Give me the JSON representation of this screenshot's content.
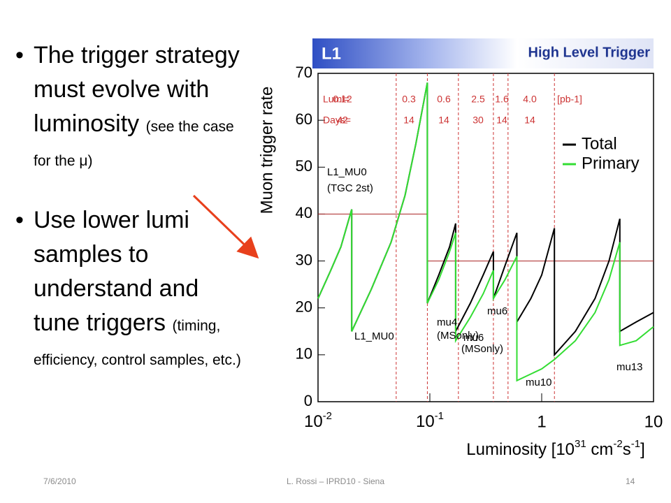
{
  "slide": {
    "bullets": [
      {
        "main": "The trigger strategy must evolve with luminosity",
        "note": "(see the case for the μ)"
      },
      {
        "main": "Use lower lumi samples to understand and tune triggers",
        "note": "(timing, efficiency, control samples, etc.)"
      }
    ],
    "footer": {
      "date": "7/6/2010",
      "center": "L. Rossi  – IPRD10 - Siena",
      "page": "14"
    }
  },
  "chart_data": {
    "type": "line",
    "banner": {
      "left": "L1",
      "right": "High Level Trigger"
    },
    "y_label": "Muon trigger rate",
    "x_label": [
      "Luminosity [10",
      "31",
      " cm",
      "-2",
      "s",
      "-1",
      "]"
    ],
    "log_x": true,
    "xlim": [
      0.01,
      10
    ],
    "xticks": [
      {
        "value": 0.01,
        "label": "10",
        "exponent": "-2"
      },
      {
        "value": 0.1,
        "label": "10",
        "exponent": "-1"
      },
      1,
      10
    ],
    "ylim": [
      0,
      70
    ],
    "yticks": [
      0,
      10,
      20,
      30,
      40,
      50,
      60,
      70
    ],
    "series": [
      {
        "name": "Total",
        "color": "#000000",
        "x": [
          0.01,
          0.013,
          0.016,
          0.02,
          0.02,
          0.03,
          0.045,
          0.06,
          0.075,
          0.095,
          0.095,
          0.12,
          0.15,
          0.17,
          0.17,
          0.23,
          0.3,
          0.37,
          0.37,
          0.47,
          0.6,
          0.6,
          0.8,
          1,
          1.3,
          1.3,
          2,
          3,
          4,
          5,
          5,
          7,
          10
        ],
        "values": [
          22,
          28,
          33,
          41,
          15,
          24,
          34,
          44,
          55,
          68,
          21,
          27,
          33,
          38,
          15,
          21,
          27,
          32,
          22,
          29,
          36,
          17,
          22,
          27,
          37,
          10,
          15,
          22,
          30,
          39,
          15,
          17,
          19
        ]
      },
      {
        "name": "Primary",
        "color": "#33dd33",
        "x": [
          0.01,
          0.013,
          0.016,
          0.02,
          0.02,
          0.03,
          0.045,
          0.06,
          0.075,
          0.095,
          0.095,
          0.12,
          0.15,
          0.17,
          0.17,
          0.23,
          0.3,
          0.37,
          0.37,
          0.47,
          0.6,
          0.6,
          1,
          1.3,
          2,
          3,
          4,
          5,
          5,
          7,
          10
        ],
        "values": [
          22,
          28,
          33,
          41,
          15,
          24,
          34,
          44,
          55,
          68,
          21,
          26,
          32,
          36,
          13,
          18,
          23,
          28,
          22,
          26,
          31,
          4.5,
          7,
          9,
          13,
          19,
          26,
          34,
          12,
          13,
          16
        ]
      }
    ],
    "thresholds": [
      {
        "value": 40,
        "x": [
          0.01,
          0.095
        ]
      },
      {
        "value": 30,
        "x": [
          0.095,
          10
        ]
      }
    ],
    "period_edges": [
      0.05,
      0.095,
      0.18,
      0.37,
      0.5,
      1.3
    ],
    "lumi_row": {
      "label": "Lumi=",
      "items": [
        "0.12",
        "0.3",
        "0.6",
        "2.5",
        "1.6",
        "4.0",
        "[pb-1]"
      ]
    },
    "days_row": {
      "label": "Days=",
      "items": [
        "42",
        "14",
        "14",
        "30",
        "14",
        "14"
      ]
    },
    "annotations": [
      "L1_MU0",
      "(TGC 2st)",
      "L1_MU0",
      "mu4",
      "(MSonly)",
      "mu6",
      "(MSonly)",
      "mu6",
      "mu10",
      "mu13"
    ],
    "legend": "upper right"
  }
}
